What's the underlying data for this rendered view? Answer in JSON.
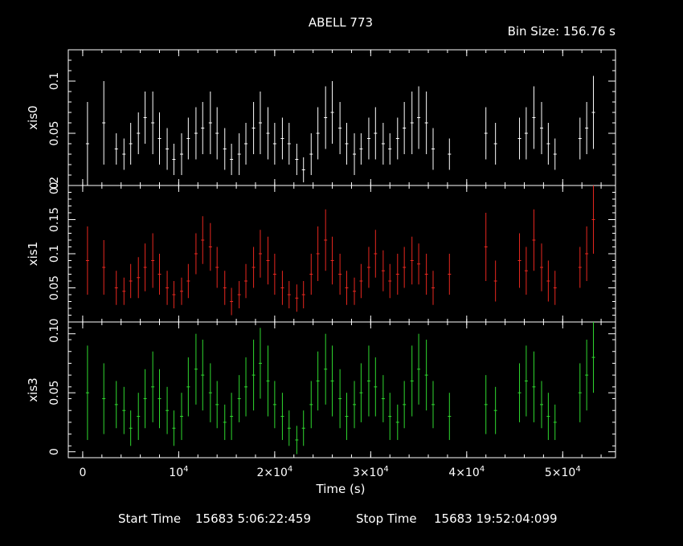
{
  "chart_data": {
    "type": "scatter",
    "style": "light curve with vertical error bars",
    "title": "ABELL 773",
    "bin_size_label": "Bin Size: 156.76 s",
    "xlabel": "Time (s)",
    "footer": {
      "start_label": "Start Time",
      "start_value": "15683  5:06:22:459",
      "stop_label": "Stop Time",
      "stop_value": "15683 19:52:04:099"
    },
    "xlim": [
      -1500,
      55500
    ],
    "x_ticks": [
      {
        "value": 0,
        "base": "0",
        "exp": ""
      },
      {
        "value": 10000,
        "base": "10",
        "exp": "4"
      },
      {
        "value": 20000,
        "base": "2×10",
        "exp": "4"
      },
      {
        "value": 30000,
        "base": "3×10",
        "exp": "4"
      },
      {
        "value": 40000,
        "base": "4×10",
        "exp": "4"
      },
      {
        "value": 50000,
        "base": "5×10",
        "exp": "4"
      }
    ],
    "background": "#000000",
    "frame_color": "#ffffff",
    "panels": [
      {
        "ylabel": "xis0",
        "color": "#ffffff",
        "ylim": [
          0.0,
          0.13
        ],
        "y_ticks": [
          "0.1",
          "0.05",
          "0"
        ],
        "y_tick_values": [
          0.1,
          0.05,
          0.0
        ],
        "points": [
          [
            500,
            0.04,
            0.04
          ],
          [
            2200,
            0.06,
            0.04
          ],
          [
            3500,
            0.035,
            0.015
          ],
          [
            4300,
            0.03,
            0.015
          ],
          [
            5000,
            0.04,
            0.02
          ],
          [
            5800,
            0.05,
            0.02
          ],
          [
            6500,
            0.065,
            0.025
          ],
          [
            7300,
            0.06,
            0.03
          ],
          [
            8000,
            0.045,
            0.025
          ],
          [
            8800,
            0.035,
            0.02
          ],
          [
            9500,
            0.025,
            0.015
          ],
          [
            10300,
            0.03,
            0.02
          ],
          [
            11000,
            0.045,
            0.02
          ],
          [
            11800,
            0.05,
            0.025
          ],
          [
            12500,
            0.055,
            0.025
          ],
          [
            13300,
            0.06,
            0.03
          ],
          [
            14000,
            0.05,
            0.025
          ],
          [
            14800,
            0.035,
            0.02
          ],
          [
            15500,
            0.025,
            0.015
          ],
          [
            16300,
            0.03,
            0.02
          ],
          [
            17000,
            0.04,
            0.02
          ],
          [
            17800,
            0.055,
            0.025
          ],
          [
            18500,
            0.06,
            0.03
          ],
          [
            19300,
            0.05,
            0.025
          ],
          [
            20000,
            0.04,
            0.02
          ],
          [
            20800,
            0.045,
            0.02
          ],
          [
            21500,
            0.04,
            0.02
          ],
          [
            22300,
            0.025,
            0.015
          ],
          [
            23000,
            0.015,
            0.012
          ],
          [
            23800,
            0.03,
            0.02
          ],
          [
            24500,
            0.05,
            0.025
          ],
          [
            25300,
            0.065,
            0.03
          ],
          [
            26000,
            0.07,
            0.03
          ],
          [
            26800,
            0.055,
            0.025
          ],
          [
            27500,
            0.04,
            0.02
          ],
          [
            28300,
            0.03,
            0.02
          ],
          [
            29000,
            0.035,
            0.015
          ],
          [
            29800,
            0.045,
            0.02
          ],
          [
            30500,
            0.05,
            0.025
          ],
          [
            31300,
            0.04,
            0.02
          ],
          [
            32000,
            0.035,
            0.015
          ],
          [
            32800,
            0.045,
            0.02
          ],
          [
            33500,
            0.055,
            0.025
          ],
          [
            34300,
            0.06,
            0.03
          ],
          [
            35000,
            0.065,
            0.03
          ],
          [
            35800,
            0.06,
            0.03
          ],
          [
            36500,
            0.035,
            0.02
          ],
          [
            38200,
            0.03,
            0.015
          ],
          [
            42000,
            0.05,
            0.025
          ],
          [
            43000,
            0.04,
            0.02
          ],
          [
            45500,
            0.045,
            0.02
          ],
          [
            46200,
            0.05,
            0.025
          ],
          [
            47000,
            0.065,
            0.03
          ],
          [
            47800,
            0.055,
            0.025
          ],
          [
            48500,
            0.04,
            0.02
          ],
          [
            49200,
            0.03,
            0.015
          ],
          [
            51800,
            0.045,
            0.02
          ],
          [
            52500,
            0.055,
            0.025
          ],
          [
            53200,
            0.07,
            0.035
          ]
        ]
      },
      {
        "ylabel": "xis1",
        "color": "#e8271f",
        "ylim": [
          0.0,
          0.2
        ],
        "y_ticks": [
          "0.2",
          "0.15",
          "0.1",
          "0.05",
          "0"
        ],
        "y_tick_values": [
          0.2,
          0.15,
          0.1,
          0.05,
          0.0
        ],
        "points": [
          [
            500,
            0.09,
            0.05
          ],
          [
            2200,
            0.08,
            0.04
          ],
          [
            3500,
            0.05,
            0.025
          ],
          [
            4300,
            0.045,
            0.02
          ],
          [
            5000,
            0.06,
            0.025
          ],
          [
            5800,
            0.065,
            0.03
          ],
          [
            6500,
            0.08,
            0.035
          ],
          [
            7300,
            0.09,
            0.04
          ],
          [
            8000,
            0.07,
            0.03
          ],
          [
            8800,
            0.05,
            0.025
          ],
          [
            9500,
            0.04,
            0.02
          ],
          [
            10300,
            0.045,
            0.02
          ],
          [
            11000,
            0.06,
            0.025
          ],
          [
            11800,
            0.1,
            0.03
          ],
          [
            12500,
            0.12,
            0.035
          ],
          [
            13300,
            0.11,
            0.035
          ],
          [
            14000,
            0.08,
            0.03
          ],
          [
            14800,
            0.05,
            0.025
          ],
          [
            15500,
            0.03,
            0.02
          ],
          [
            16300,
            0.04,
            0.02
          ],
          [
            17000,
            0.06,
            0.025
          ],
          [
            17800,
            0.08,
            0.03
          ],
          [
            18500,
            0.1,
            0.035
          ],
          [
            19300,
            0.09,
            0.035
          ],
          [
            20000,
            0.07,
            0.03
          ],
          [
            20800,
            0.05,
            0.025
          ],
          [
            21500,
            0.04,
            0.02
          ],
          [
            22300,
            0.035,
            0.02
          ],
          [
            23000,
            0.04,
            0.02
          ],
          [
            23800,
            0.07,
            0.03
          ],
          [
            24500,
            0.1,
            0.04
          ],
          [
            25300,
            0.12,
            0.045
          ],
          [
            26000,
            0.09,
            0.035
          ],
          [
            26800,
            0.07,
            0.03
          ],
          [
            27500,
            0.05,
            0.025
          ],
          [
            28300,
            0.045,
            0.02
          ],
          [
            29000,
            0.06,
            0.025
          ],
          [
            29800,
            0.08,
            0.03
          ],
          [
            30500,
            0.1,
            0.035
          ],
          [
            31300,
            0.075,
            0.03
          ],
          [
            32000,
            0.06,
            0.025
          ],
          [
            32800,
            0.07,
            0.03
          ],
          [
            33500,
            0.08,
            0.03
          ],
          [
            34300,
            0.09,
            0.035
          ],
          [
            35000,
            0.085,
            0.03
          ],
          [
            35800,
            0.07,
            0.03
          ],
          [
            36500,
            0.05,
            0.025
          ],
          [
            38200,
            0.07,
            0.03
          ],
          [
            42000,
            0.11,
            0.05
          ],
          [
            43000,
            0.06,
            0.03
          ],
          [
            45500,
            0.09,
            0.04
          ],
          [
            46200,
            0.075,
            0.035
          ],
          [
            47000,
            0.12,
            0.045
          ],
          [
            47800,
            0.08,
            0.035
          ],
          [
            48500,
            0.06,
            0.03
          ],
          [
            49200,
            0.05,
            0.025
          ],
          [
            51800,
            0.08,
            0.03
          ],
          [
            52500,
            0.1,
            0.04
          ],
          [
            53200,
            0.15,
            0.05
          ]
        ]
      },
      {
        "ylabel": "xis3",
        "color": "#2fd92f",
        "ylim": [
          -0.005,
          0.11
        ],
        "y_ticks": [
          "0.1",
          "0.05",
          "0"
        ],
        "y_tick_values": [
          0.1,
          0.05,
          0.0
        ],
        "points": [
          [
            500,
            0.05,
            0.04
          ],
          [
            2200,
            0.045,
            0.03
          ],
          [
            3500,
            0.04,
            0.02
          ],
          [
            4300,
            0.035,
            0.02
          ],
          [
            5000,
            0.02,
            0.015
          ],
          [
            5800,
            0.03,
            0.02
          ],
          [
            6500,
            0.045,
            0.025
          ],
          [
            7300,
            0.055,
            0.03
          ],
          [
            8000,
            0.045,
            0.025
          ],
          [
            8800,
            0.035,
            0.02
          ],
          [
            9500,
            0.02,
            0.015
          ],
          [
            10300,
            0.03,
            0.02
          ],
          [
            11000,
            0.055,
            0.025
          ],
          [
            11800,
            0.07,
            0.03
          ],
          [
            12500,
            0.065,
            0.03
          ],
          [
            13300,
            0.05,
            0.025
          ],
          [
            14000,
            0.04,
            0.02
          ],
          [
            14800,
            0.025,
            0.015
          ],
          [
            15500,
            0.03,
            0.02
          ],
          [
            16300,
            0.045,
            0.02
          ],
          [
            17000,
            0.055,
            0.025
          ],
          [
            17800,
            0.065,
            0.03
          ],
          [
            18500,
            0.075,
            0.03
          ],
          [
            19300,
            0.06,
            0.03
          ],
          [
            20000,
            0.04,
            0.02
          ],
          [
            20800,
            0.03,
            0.02
          ],
          [
            21500,
            0.02,
            0.015
          ],
          [
            22300,
            0.01,
            0.012
          ],
          [
            23000,
            0.02,
            0.015
          ],
          [
            23800,
            0.04,
            0.02
          ],
          [
            24500,
            0.06,
            0.025
          ],
          [
            25300,
            0.07,
            0.03
          ],
          [
            26000,
            0.06,
            0.03
          ],
          [
            26800,
            0.045,
            0.025
          ],
          [
            27500,
            0.03,
            0.02
          ],
          [
            28300,
            0.04,
            0.02
          ],
          [
            29000,
            0.05,
            0.025
          ],
          [
            29800,
            0.06,
            0.03
          ],
          [
            30500,
            0.055,
            0.025
          ],
          [
            31300,
            0.045,
            0.02
          ],
          [
            32000,
            0.03,
            0.02
          ],
          [
            32800,
            0.025,
            0.015
          ],
          [
            33500,
            0.04,
            0.02
          ],
          [
            34300,
            0.06,
            0.03
          ],
          [
            35000,
            0.07,
            0.03
          ],
          [
            35800,
            0.065,
            0.03
          ],
          [
            36500,
            0.04,
            0.02
          ],
          [
            38200,
            0.03,
            0.02
          ],
          [
            42000,
            0.04,
            0.025
          ],
          [
            43000,
            0.035,
            0.02
          ],
          [
            45500,
            0.05,
            0.025
          ],
          [
            46200,
            0.06,
            0.03
          ],
          [
            47000,
            0.055,
            0.03
          ],
          [
            47800,
            0.04,
            0.02
          ],
          [
            48500,
            0.03,
            0.02
          ],
          [
            49200,
            0.025,
            0.015
          ],
          [
            51800,
            0.05,
            0.025
          ],
          [
            52500,
            0.065,
            0.03
          ],
          [
            53200,
            0.08,
            0.03
          ]
        ]
      }
    ]
  }
}
